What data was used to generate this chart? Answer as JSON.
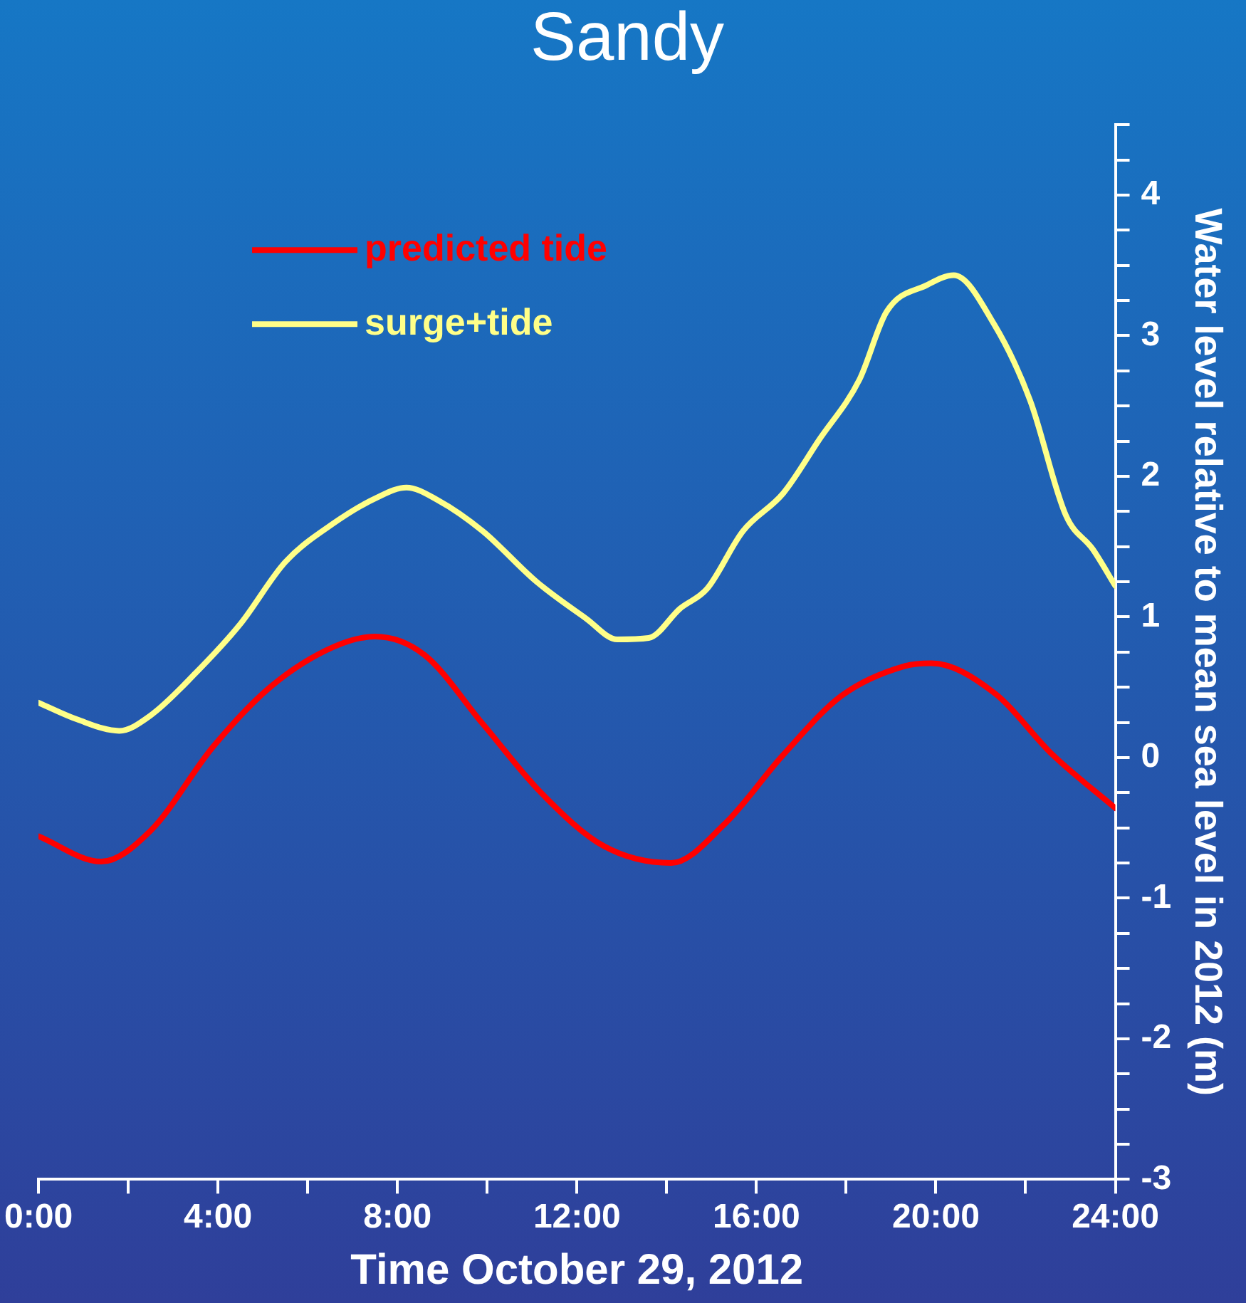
{
  "chart_data": {
    "type": "line",
    "title": "Sandy",
    "xlabel": "Time October 29, 2012",
    "ylabel": "Water level relative to mean sea level in 2012 (m)",
    "xlim": [
      0,
      24
    ],
    "xticks": [
      {
        "value": 0,
        "label": "0:00"
      },
      {
        "value": 2,
        "label": null
      },
      {
        "value": 4,
        "label": "4:00"
      },
      {
        "value": 6,
        "label": null
      },
      {
        "value": 8,
        "label": "8:00"
      },
      {
        "value": 10,
        "label": null
      },
      {
        "value": 12,
        "label": "12:00"
      },
      {
        "value": 14,
        "label": null
      },
      {
        "value": 16,
        "label": "16:00"
      },
      {
        "value": 18,
        "label": null
      },
      {
        "value": 20,
        "label": "20:00"
      },
      {
        "value": 22,
        "label": null
      },
      {
        "value": 24,
        "label": "24:00"
      }
    ],
    "ylim": [
      -3,
      4.5
    ],
    "yticks": [
      -3,
      {
        "value": -2.75,
        "label": null
      },
      {
        "value": -2.5,
        "label": null
      },
      {
        "value": -2.25,
        "label": null
      },
      -2,
      {
        "value": -1.75,
        "label": null
      },
      {
        "value": -1.5,
        "label": null
      },
      {
        "value": -1.25,
        "label": null
      },
      -1,
      {
        "value": -0.75,
        "label": null
      },
      {
        "value": -0.5,
        "label": null
      },
      {
        "value": -0.25,
        "label": null
      },
      0,
      {
        "value": 0.25,
        "label": null
      },
      {
        "value": 0.5,
        "label": null
      },
      {
        "value": 0.75,
        "label": null
      },
      1,
      {
        "value": 1.25,
        "label": null
      },
      {
        "value": 1.5,
        "label": null
      },
      {
        "value": 1.75,
        "label": null
      },
      2,
      {
        "value": 2.25,
        "label": null
      },
      {
        "value": 2.5,
        "label": null
      },
      {
        "value": 2.75,
        "label": null
      },
      3,
      {
        "value": 3.25,
        "label": null
      },
      {
        "value": 3.5,
        "label": null
      },
      {
        "value": 3.75,
        "label": null
      },
      4,
      {
        "value": 4.25,
        "label": null
      },
      {
        "value": 4.5,
        "label": null
      }
    ],
    "grid": false,
    "legend": "top left",
    "marker": "none",
    "line_style": "solid",
    "series": [
      {
        "name": "predicted tide",
        "color": "#ff0000",
        "x": [
          0,
          1.4,
          2.5,
          3.9,
          5.2,
          6.6,
          7.5,
          8.6,
          9.9,
          11.2,
          12.6,
          14.1,
          15.3,
          16.6,
          17.9,
          19.3,
          19.9,
          21.3,
          22.6,
          24
        ],
        "values": [
          -0.56,
          -0.74,
          -0.52,
          0.08,
          0.51,
          0.79,
          0.86,
          0.73,
          0.24,
          -0.25,
          -0.63,
          -0.75,
          -0.47,
          0.02,
          0.44,
          0.65,
          0.67,
          0.46,
          0.02,
          -0.36
        ]
      },
      {
        "name": "surge+tide",
        "color": "#ffff88",
        "x": [
          0,
          0.87,
          1.8,
          2.5,
          3.5,
          4.5,
          5.5,
          6.55,
          7.55,
          8.2,
          8.9,
          9.9,
          11.1,
          12.2,
          12.9,
          13.6,
          14.3,
          14.9,
          15.7,
          16.6,
          17.4,
          18.3,
          18.9,
          19.8,
          20.4,
          21.3,
          22.1,
          22.9,
          23.5,
          24
        ],
        "values": [
          0.39,
          0.27,
          0.19,
          0.3,
          0.6,
          0.95,
          1.39,
          1.66,
          1.85,
          1.92,
          1.83,
          1.61,
          1.25,
          0.99,
          0.84,
          0.85,
          1.06,
          1.2,
          1.61,
          1.88,
          2.26,
          2.69,
          3.17,
          3.36,
          3.43,
          3.08,
          2.54,
          1.72,
          1.48,
          1.22
        ]
      }
    ]
  }
}
